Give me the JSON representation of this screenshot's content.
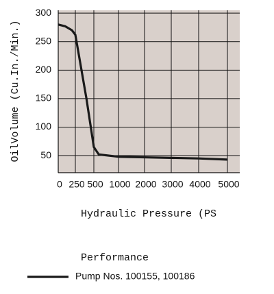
{
  "chart_data": {
    "type": "line",
    "y_label": "OilVolume (Cu.In./Min.)",
    "x_label": "Hydraulic Pressure (PS",
    "legend_title": "Performance",
    "x": [
      0,
      100,
      200,
      250,
      400,
      500,
      600,
      1000,
      2000,
      3000,
      4000,
      5000
    ],
    "series": [
      {
        "name": "Pump Nos. 100155, 100186",
        "color": "#1a1a1a",
        "values": [
          280,
          277,
          270,
          262,
          150,
          65,
          52,
          48,
          47,
          46,
          45,
          43
        ]
      }
    ],
    "xticks": [
      0,
      250,
      500,
      1000,
      2000,
      3000,
      4000,
      5000
    ],
    "ylim": [
      20,
      305
    ],
    "yticks": [
      50,
      100,
      150,
      200,
      250,
      300
    ],
    "grid": true,
    "plot_color": "#d9d0cb"
  }
}
